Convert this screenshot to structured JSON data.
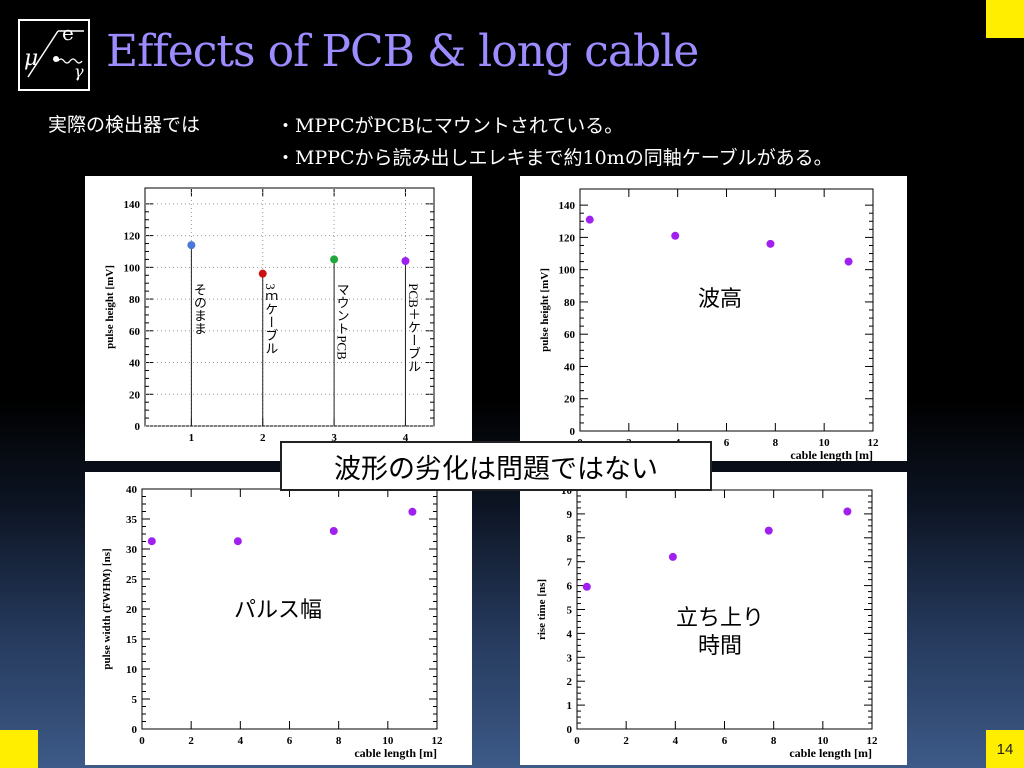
{
  "slide": {
    "title": "Effects of PCB & long cable",
    "intro": "実際の検出器では",
    "bullets": [
      "・MPPCがPCBにマウントされている。",
      "・MPPCから読み出しエレキまで約10mの同軸ケーブルがある。"
    ],
    "callout": "波形の劣化は問題ではない",
    "page_number": "14",
    "logo": {
      "symbols": [
        "μ",
        "e",
        "γ"
      ]
    },
    "accent_color": "#ffee00",
    "title_color": "#9b8cff"
  },
  "chart_data": [
    {
      "type": "scatter",
      "ylabel": "pulse height [mV]",
      "xlabel": "",
      "xlim": [
        0.35,
        4.4
      ],
      "ylim": [
        0,
        150
      ],
      "xticks": [
        1,
        2,
        3,
        4
      ],
      "yticks": [
        0,
        20,
        40,
        60,
        80,
        100,
        120,
        140
      ],
      "grid": "dotted",
      "points": [
        {
          "x": 1,
          "y": 114,
          "color": "#4a78d8",
          "label": "そのまま"
        },
        {
          "x": 2,
          "y": 96,
          "color": "#cc1111",
          "label": "3ｍケーブル"
        },
        {
          "x": 3,
          "y": 105,
          "color": "#22a83a",
          "label": "マウントPCB"
        },
        {
          "x": 4,
          "y": 104,
          "color": "#a020f0",
          "label": "PCB＋ケーブル"
        }
      ]
    },
    {
      "type": "scatter",
      "ylabel": "pulse height [mV]",
      "xlabel": "cable length [m]",
      "xlim": [
        0,
        12
      ],
      "ylim": [
        0,
        150
      ],
      "xticks": [
        0,
        2,
        4,
        6,
        8,
        10,
        12
      ],
      "yticks": [
        0,
        20,
        40,
        60,
        80,
        100,
        120,
        140
      ],
      "annotation": "波高",
      "color": "#a020f0",
      "x": [
        0.4,
        3.9,
        7.8,
        11.0
      ],
      "y": [
        131,
        121,
        116,
        105
      ]
    },
    {
      "type": "scatter",
      "ylabel": "pulse width (FWHM) [ns]",
      "xlabel": "cable length [m]",
      "xlim": [
        0,
        12
      ],
      "ylim": [
        0,
        40
      ],
      "xticks": [
        0,
        2,
        4,
        6,
        8,
        10,
        12
      ],
      "yticks": [
        0,
        5,
        10,
        15,
        20,
        25,
        30,
        35,
        40
      ],
      "annotation": "パルス幅",
      "color": "#a020f0",
      "x": [
        0.4,
        3.9,
        7.8,
        11.0
      ],
      "y": [
        31.3,
        31.3,
        33.0,
        36.2
      ]
    },
    {
      "type": "scatter",
      "ylabel": "rise time [ns]",
      "xlabel": "cable length [m]",
      "xlim": [
        0,
        12
      ],
      "ylim": [
        0,
        10
      ],
      "xticks": [
        0,
        2,
        4,
        6,
        8,
        10,
        12
      ],
      "yticks": [
        0,
        1,
        2,
        3,
        4,
        5,
        6,
        7,
        8,
        9,
        10
      ],
      "annotation": [
        "立ち上り",
        "時間"
      ],
      "color": "#a020f0",
      "x": [
        0.4,
        3.9,
        7.8,
        11.0
      ],
      "y": [
        5.95,
        7.2,
        8.3,
        9.1
      ]
    }
  ]
}
